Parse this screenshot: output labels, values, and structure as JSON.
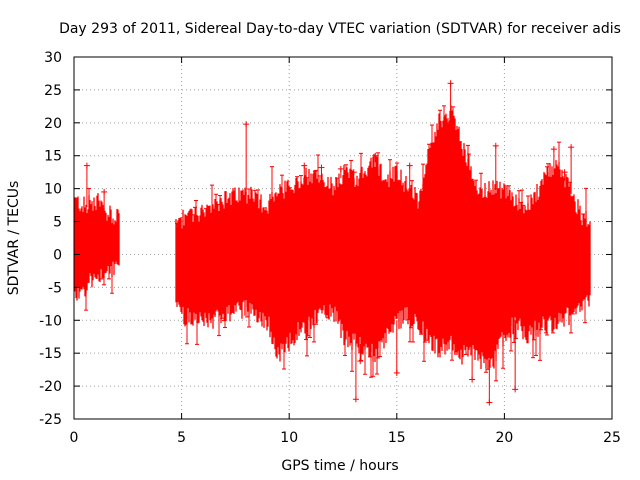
{
  "chart_data": {
    "type": "scatter",
    "title": "Day 293 of 2011, Sidereal Day-to-day VTEC variation (SDTVAR) for receiver adis",
    "xlabel": "GPS time / hours",
    "ylabel": "SDTVAR / TECUs",
    "xlim": [
      0,
      25
    ],
    "ylim": [
      -25,
      30
    ],
    "xticks": [
      0,
      5,
      10,
      15,
      20,
      25
    ],
    "yticks": [
      -25,
      -20,
      -15,
      -10,
      -5,
      0,
      5,
      10,
      15,
      20,
      25,
      30
    ],
    "grid": true,
    "point_color": "#ff0000",
    "envelope": {
      "hours": [
        0.0,
        0.5,
        1.0,
        1.5,
        2.1,
        4.7,
        5.0,
        6.0,
        7.0,
        8.0,
        8.5,
        9.0,
        9.5,
        10.0,
        10.5,
        11.0,
        11.5,
        12.0,
        12.5,
        13.0,
        13.5,
        14.0,
        14.5,
        15.0,
        15.5,
        16.0,
        16.5,
        17.0,
        17.5,
        18.0,
        18.5,
        19.0,
        19.5,
        20.0,
        20.5,
        21.0,
        21.5,
        22.0,
        22.5,
        23.0,
        23.5,
        24.0
      ],
      "upper": [
        8,
        7,
        8,
        6,
        5,
        5,
        5,
        6,
        8,
        9,
        8,
        7,
        9,
        10,
        11,
        12,
        11,
        10,
        12,
        11,
        12,
        14,
        11,
        12,
        10,
        8,
        16,
        20,
        21,
        17,
        11,
        9,
        10,
        9,
        8,
        6,
        9,
        12,
        13,
        10,
        6,
        4
      ],
      "lower": [
        -6,
        -5,
        -3,
        -2,
        -2,
        -6,
        -9,
        -10,
        -9,
        -8,
        -9,
        -10,
        -15,
        -13,
        -11,
        -10,
        -9,
        -8,
        -12,
        -13,
        -14,
        -15,
        -12,
        -10,
        -9,
        -10,
        -13,
        -14,
        -13,
        -15,
        -14,
        -16,
        -16,
        -12,
        -10,
        -12,
        -11,
        -10,
        -10,
        -9,
        -8,
        -7
      ]
    },
    "gaps_hours": [
      [
        2.1,
        4.7
      ]
    ],
    "outliers": [
      {
        "x": 0.6,
        "y": 13.5
      },
      {
        "x": 1.4,
        "y": 9.5
      },
      {
        "x": 8.0,
        "y": 19.8
      },
      {
        "x": 10.7,
        "y": 13.5
      },
      {
        "x": 11.5,
        "y": 13.2
      },
      {
        "x": 12.4,
        "y": 13.0
      },
      {
        "x": 13.0,
        "y": 12.5
      },
      {
        "x": 13.3,
        "y": -16.2
      },
      {
        "x": 13.1,
        "y": -22.0
      },
      {
        "x": 14.0,
        "y": 15.0
      },
      {
        "x": 15.0,
        "y": -18.0
      },
      {
        "x": 15.6,
        "y": 13.5
      },
      {
        "x": 17.5,
        "y": 26.0
      },
      {
        "x": 18.5,
        "y": -19.0
      },
      {
        "x": 19.3,
        "y": -22.5
      },
      {
        "x": 19.6,
        "y": 16.5
      },
      {
        "x": 20.5,
        "y": -20.5
      },
      {
        "x": 22.3,
        "y": 16.0
      },
      {
        "x": 22.8,
        "y": 12.5
      },
      {
        "x": 23.1,
        "y": 16.3
      }
    ]
  }
}
